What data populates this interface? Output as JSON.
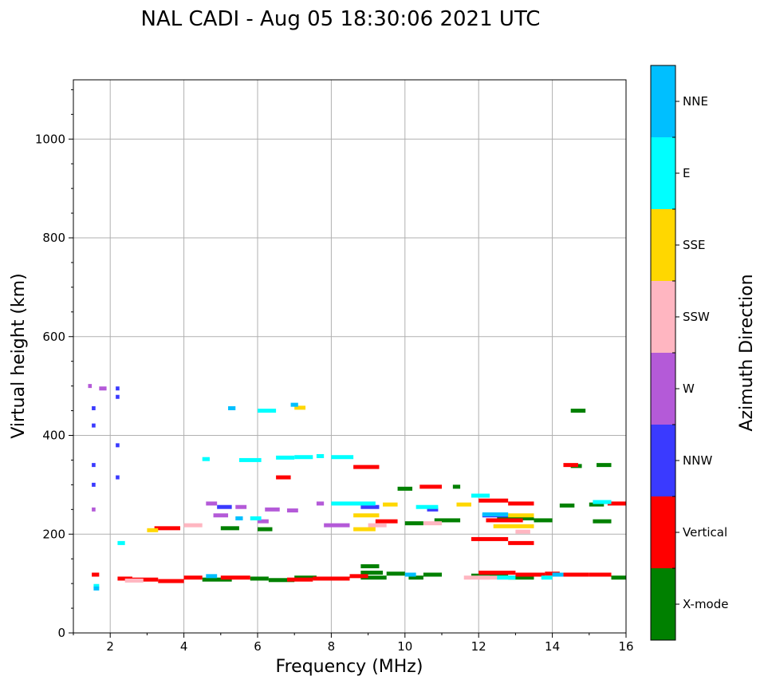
{
  "chart_data": {
    "type": "scatter",
    "title": "NAL CADI - Aug 05 18:30:06 2021 UTC",
    "xlabel": "Frequency (MHz)",
    "ylabel": "Virtual height (km)",
    "xlim": [
      1,
      16
    ],
    "ylim": [
      0,
      1120
    ],
    "xticks": [
      2,
      4,
      6,
      8,
      10,
      12,
      14,
      16
    ],
    "yticks": [
      0,
      200,
      400,
      600,
      800,
      1000
    ],
    "grid": true,
    "colorbar": {
      "label": "Azimuth Direction",
      "categories": [
        {
          "name": "X-mode",
          "color": "#008000"
        },
        {
          "name": "Vertical",
          "color": "#ff0000"
        },
        {
          "name": "NNW",
          "color": "#3a3aff"
        },
        {
          "name": "W",
          "color": "#b45ad8"
        },
        {
          "name": "SSW",
          "color": "#ffb6c1"
        },
        {
          "name": "SSE",
          "color": "#ffd700"
        },
        {
          "name": "E",
          "color": "#00ffff"
        },
        {
          "name": "NNE",
          "color": "#00bfff"
        }
      ]
    },
    "series": [
      {
        "name": "X-mode",
        "segments": [
          [
            4.5,
            5.3,
            108
          ],
          [
            5.8,
            6.3,
            110
          ],
          [
            6.3,
            7.0,
            107
          ],
          [
            7.0,
            7.6,
            112
          ],
          [
            8.8,
            9.5,
            112
          ],
          [
            8.8,
            9.4,
            122
          ],
          [
            8.8,
            9.3,
            135
          ],
          [
            9.5,
            10.0,
            120
          ],
          [
            10.1,
            10.5,
            112
          ],
          [
            10.5,
            11.0,
            118
          ],
          [
            11.8,
            12.8,
            116
          ],
          [
            12.8,
            13.5,
            112
          ],
          [
            14.5,
            14.9,
            450
          ],
          [
            15.1,
            15.6,
            226
          ],
          [
            14.2,
            14.6,
            258
          ],
          [
            15.0,
            15.4,
            260
          ],
          [
            15.6,
            16.0,
            112
          ],
          [
            14.5,
            14.8,
            338
          ],
          [
            15.2,
            15.6,
            340
          ],
          [
            10.0,
            10.5,
            222
          ],
          [
            10.8,
            11.5,
            228
          ],
          [
            6.0,
            6.4,
            210
          ],
          [
            5.0,
            5.5,
            212
          ],
          [
            13.5,
            14.0,
            228
          ],
          [
            9.8,
            10.2,
            292
          ],
          [
            11.3,
            11.5,
            296
          ],
          [
            12.5,
            13.5,
            232
          ]
        ]
      },
      {
        "name": "Vertical",
        "segments": [
          [
            1.5,
            1.7,
            118
          ],
          [
            2.2,
            2.6,
            110
          ],
          [
            2.6,
            3.3,
            108
          ],
          [
            3.3,
            4.0,
            105
          ],
          [
            4.0,
            4.5,
            112
          ],
          [
            5.0,
            5.8,
            112
          ],
          [
            6.8,
            7.5,
            108
          ],
          [
            7.5,
            8.5,
            110
          ],
          [
            8.5,
            9.0,
            115
          ],
          [
            12.0,
            13.0,
            122
          ],
          [
            13.0,
            13.8,
            118
          ],
          [
            13.8,
            14.2,
            120
          ],
          [
            14.3,
            15.0,
            118
          ],
          [
            15.0,
            15.6,
            118
          ],
          [
            12.0,
            12.8,
            268
          ],
          [
            12.8,
            13.5,
            262
          ],
          [
            14.3,
            14.7,
            340
          ],
          [
            8.6,
            9.3,
            336
          ],
          [
            9.2,
            9.8,
            226
          ],
          [
            6.5,
            6.9,
            315
          ],
          [
            3.2,
            3.9,
            212
          ],
          [
            11.8,
            12.8,
            190
          ],
          [
            12.8,
            13.5,
            182
          ],
          [
            10.4,
            11.0,
            296
          ],
          [
            15.5,
            16.0,
            262
          ],
          [
            12.2,
            13.2,
            228
          ]
        ]
      },
      {
        "name": "NNW",
        "segments": [
          [
            2.15,
            2.25,
            495
          ],
          [
            2.15,
            2.25,
            478
          ],
          [
            2.15,
            2.25,
            380
          ],
          [
            2.15,
            2.25,
            315
          ],
          [
            1.5,
            1.6,
            455
          ],
          [
            1.5,
            1.6,
            420
          ],
          [
            1.5,
            1.6,
            340
          ],
          [
            1.5,
            1.6,
            300
          ],
          [
            12.1,
            12.8,
            238
          ],
          [
            10.6,
            10.9,
            250
          ],
          [
            8.8,
            9.3,
            255
          ],
          [
            4.9,
            5.3,
            255
          ]
        ]
      },
      {
        "name": "W",
        "segments": [
          [
            1.4,
            1.5,
            500
          ],
          [
            1.7,
            1.9,
            495
          ],
          [
            6.2,
            6.6,
            250
          ],
          [
            6.8,
            7.1,
            248
          ],
          [
            4.8,
            5.2,
            238
          ],
          [
            4.6,
            4.9,
            262
          ],
          [
            5.4,
            5.7,
            255
          ],
          [
            7.6,
            7.8,
            262
          ],
          [
            1.5,
            1.6,
            250
          ],
          [
            6.0,
            6.3,
            226
          ],
          [
            7.8,
            8.5,
            218
          ]
        ]
      },
      {
        "name": "SSW",
        "segments": [
          [
            4.0,
            4.5,
            218
          ],
          [
            11.6,
            12.3,
            112
          ],
          [
            10.5,
            11.0,
            222
          ],
          [
            9.0,
            9.5,
            218
          ],
          [
            12.0,
            12.8,
            112
          ],
          [
            2.4,
            2.9,
            106
          ],
          [
            13.0,
            13.4,
            205
          ]
        ]
      },
      {
        "name": "SSE",
        "segments": [
          [
            8.6,
            9.2,
            210
          ],
          [
            12.8,
            13.5,
            238
          ],
          [
            12.4,
            13.5,
            216
          ],
          [
            8.6,
            9.3,
            238
          ],
          [
            3.0,
            3.3,
            208
          ],
          [
            9.4,
            9.8,
            260
          ],
          [
            11.4,
            11.8,
            260
          ],
          [
            7.0,
            7.3,
            456
          ]
        ]
      },
      {
        "name": "E",
        "segments": [
          [
            6.5,
            7.0,
            355
          ],
          [
            7.0,
            7.5,
            356
          ],
          [
            8.0,
            8.6,
            356
          ],
          [
            6.0,
            6.5,
            450
          ],
          [
            5.5,
            6.1,
            350
          ],
          [
            8.0,
            9.2,
            262
          ],
          [
            10.3,
            10.9,
            255
          ],
          [
            15.1,
            15.6,
            265
          ],
          [
            11.8,
            12.3,
            278
          ],
          [
            5.8,
            6.1,
            232
          ],
          [
            4.5,
            4.7,
            352
          ],
          [
            1.55,
            1.7,
            95
          ],
          [
            2.2,
            2.4,
            182
          ],
          [
            13.7,
            14.0,
            112
          ],
          [
            12.5,
            13.0,
            112
          ],
          [
            7.6,
            7.8,
            358
          ]
        ]
      },
      {
        "name": "NNE",
        "segments": [
          [
            5.4,
            5.6,
            232
          ],
          [
            6.9,
            7.1,
            462
          ],
          [
            1.55,
            1.7,
            90
          ],
          [
            12.1,
            12.8,
            240
          ],
          [
            14.0,
            14.3,
            118
          ],
          [
            10.0,
            10.3,
            118
          ],
          [
            4.6,
            4.9,
            115
          ],
          [
            5.2,
            5.4,
            455
          ]
        ]
      }
    ]
  }
}
